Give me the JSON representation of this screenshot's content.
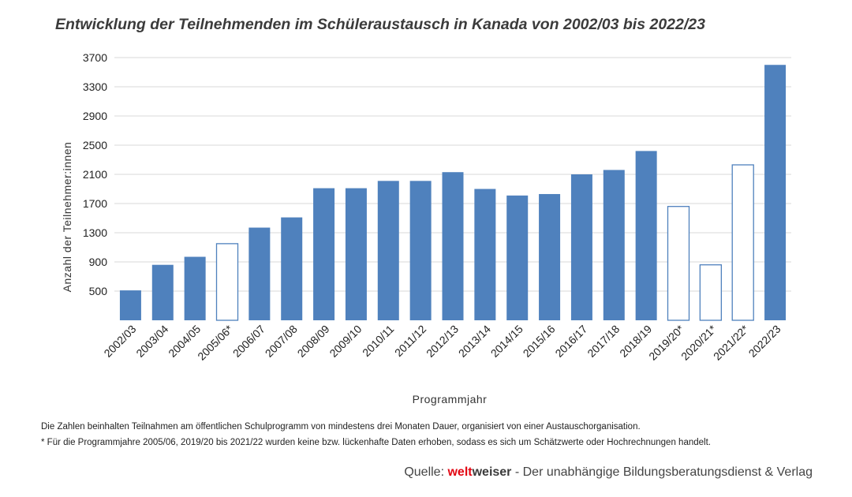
{
  "title": "Entwicklung der Teilnehmenden im Schüleraustausch in Kanada von 2002/03 bis 2022/23",
  "notes": {
    "line1": "Die Zahlen beinhalten Teilnahmen am öffentlichen Schulprogramm von mindestens drei Monaten Dauer, organisiert von einer Austauschorganisation.",
    "line2": "* Für die Programmjahre 2005/06, 2019/20 bis 2021/22 wurden keine bzw. lückenhafte Daten erhoben, sodass es sich um Schätzwerte oder Hochrechnungen handelt."
  },
  "source": {
    "prefix": "Quelle: ",
    "brand_part1": "welt",
    "brand_part2": "weiser",
    "suffix": " - Der unabhängige Bildungsberatungsdienst & Verlag"
  },
  "colors": {
    "bar_fill": "#4f81bd",
    "estimate_fill": "#ffffff",
    "estimate_stroke": "#4f81bd",
    "grid": "#d9d9d9",
    "brand_red": "#e30613"
  },
  "chart_data": {
    "type": "bar",
    "title": "Entwicklung der Teilnehmenden im Schüleraustausch in Kanada von 2002/03 bis 2022/23",
    "xlabel": "Programmjahr",
    "ylabel": "Anzahl der Teilnehmer:innen",
    "yticks": [
      500,
      900,
      1300,
      1700,
      2100,
      2500,
      2900,
      3300,
      3700
    ],
    "ylim": [
      100,
      3700
    ],
    "grid": true,
    "categories": [
      "2002/03",
      "2003/04",
      "2004/05",
      "2005/06*",
      "2006/07",
      "2007/08",
      "2008/09",
      "2009/10",
      "2010/11",
      "2011/12",
      "2012/13",
      "2013/14",
      "2014/15",
      "2015/16",
      "2016/17",
      "2017/18",
      "2018/19",
      "2019/20*",
      "2020/21*",
      "2021/22*",
      "2022/23"
    ],
    "values": [
      510,
      860,
      970,
      1150,
      1370,
      1510,
      1910,
      1910,
      2010,
      2010,
      2130,
      1900,
      1810,
      1830,
      2100,
      2160,
      2420,
      1660,
      860,
      2230,
      3600
    ],
    "estimated": [
      false,
      false,
      false,
      true,
      false,
      false,
      false,
      false,
      false,
      false,
      false,
      false,
      false,
      false,
      false,
      false,
      false,
      true,
      true,
      true,
      false
    ]
  }
}
